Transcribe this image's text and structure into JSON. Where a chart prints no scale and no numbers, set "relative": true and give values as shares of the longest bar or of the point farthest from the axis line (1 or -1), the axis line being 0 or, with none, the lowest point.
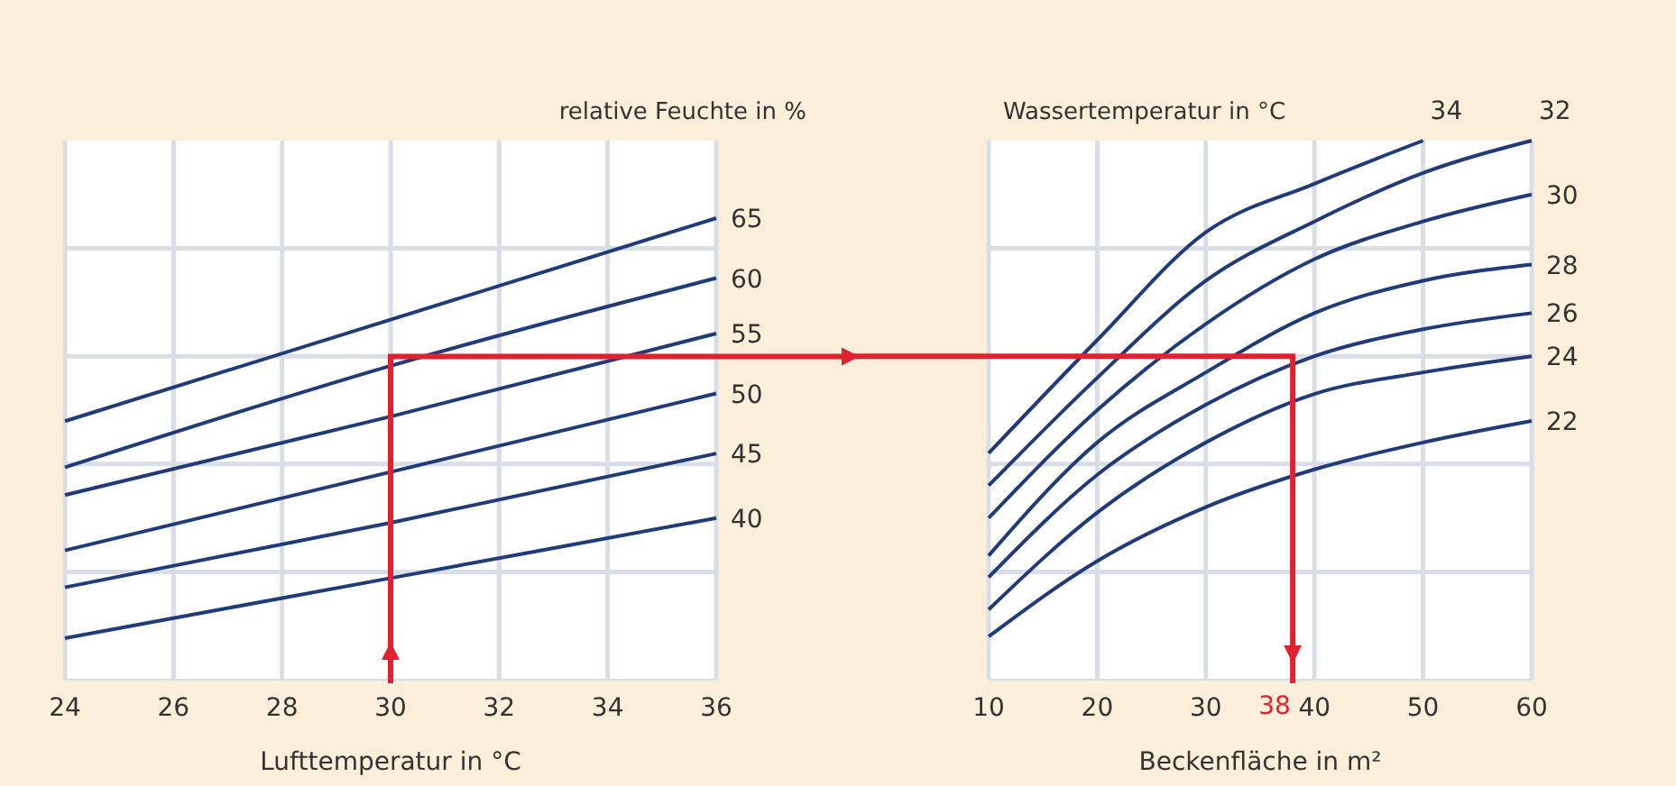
{
  "chart_data": [
    {
      "type": "line",
      "relative": true,
      "legend_title": "relative Feuchte in %",
      "xlabel": "Lufttemperatur in °C",
      "x": [
        24,
        30,
        36
      ],
      "xlim": [
        24,
        36
      ],
      "xticks": [
        24,
        26,
        28,
        30,
        32,
        34,
        36
      ],
      "grid": true,
      "line_style": "solid",
      "tick_labels": "x",
      "series": [
        {
          "name": "65",
          "color": "#1f3b7a",
          "values": [
            0.56,
            0.78,
            1
          ]
        },
        {
          "name": "60",
          "color": "#1f3b7a",
          "values": [
            0.46,
            0.68,
            0.87
          ]
        },
        {
          "name": "55",
          "color": "#1f3b7a",
          "values": [
            0.4,
            0.57,
            0.75
          ]
        },
        {
          "name": "50",
          "color": "#1f3b7a",
          "values": [
            0.28,
            0.45,
            0.62
          ]
        },
        {
          "name": "45",
          "color": "#1f3b7a",
          "values": [
            0.2,
            0.34,
            0.49
          ]
        },
        {
          "name": "40",
          "color": "#1f3b7a",
          "values": [
            0.09,
            0.22,
            0.35
          ]
        }
      ],
      "ref_lines": [
        {
          "axis": "x",
          "value": 30,
          "color": "#e3202e"
        },
        {
          "axis": "y",
          "value": 0.7,
          "color": "#e3202e"
        }
      ]
    },
    {
      "type": "line",
      "relative": true,
      "legend_title": "Wassertemperatur in °C",
      "xlabel": "Beckenfläche in m²",
      "x": [
        10,
        20,
        30,
        40,
        50,
        60
      ],
      "xlim": [
        10,
        60
      ],
      "xticks": [
        10,
        20,
        30,
        40,
        50,
        60
      ],
      "grid": true,
      "line_style": "solid",
      "tick_labels": "x",
      "series": [
        {
          "name": "34",
          "color": "#1f3b7a",
          "values": [
            0.42,
            0.63,
            0.83,
            0.92,
            1.0,
            null
          ]
        },
        {
          "name": "32",
          "color": "#1f3b7a",
          "values": [
            0.36,
            0.56,
            0.74,
            0.85,
            0.94,
            1.0
          ]
        },
        {
          "name": "30",
          "color": "#1f3b7a",
          "values": [
            0.3,
            0.5,
            0.66,
            0.78,
            0.85,
            0.9
          ]
        },
        {
          "name": "28",
          "color": "#1f3b7a",
          "values": [
            0.23,
            0.44,
            0.57,
            0.68,
            0.74,
            0.77
          ]
        },
        {
          "name": "26",
          "color": "#1f3b7a",
          "values": [
            0.19,
            0.38,
            0.51,
            0.6,
            0.65,
            0.68
          ]
        },
        {
          "name": "24",
          "color": "#1f3b7a",
          "values": [
            0.13,
            0.31,
            0.44,
            0.53,
            0.57,
            0.6
          ]
        },
        {
          "name": "22",
          "color": "#1f3b7a",
          "values": [
            0.08,
            0.22,
            0.32,
            0.39,
            0.44,
            0.48
          ]
        }
      ],
      "ref_lines": [
        {
          "axis": "y",
          "value": 0.6,
          "color": "#e3202e"
        },
        {
          "axis": "x",
          "value": 38,
          "label": "38",
          "color": "#e3202e"
        }
      ]
    }
  ]
}
